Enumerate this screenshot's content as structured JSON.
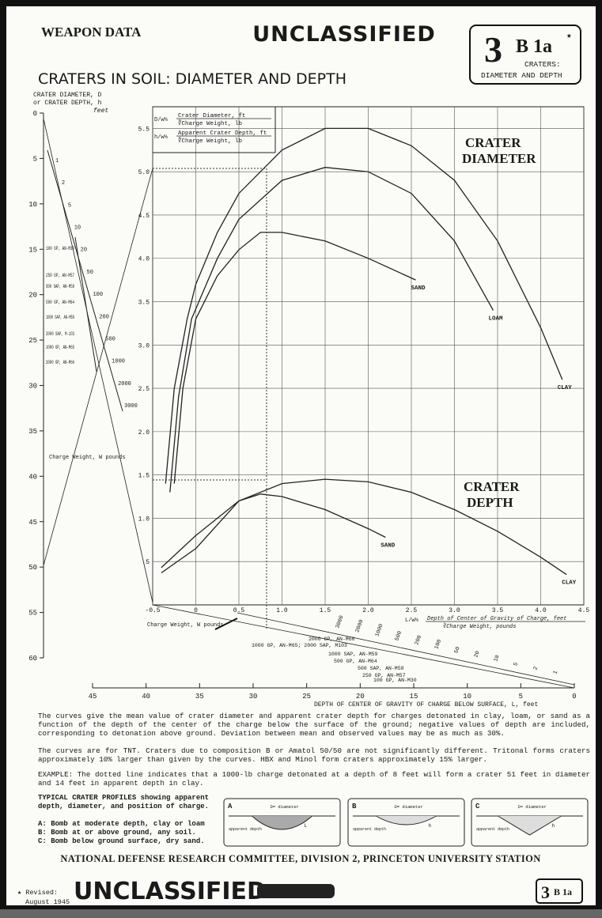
{
  "header": {
    "left": "WEAPON DATA",
    "stamp": "UNCLASSIFIED",
    "badge_number": "3",
    "badge_code": "B 1a",
    "badge_star": "★",
    "badge_caption_1": "CRATERS:",
    "badge_caption_2": "DIAMETER AND DEPTH",
    "title": "CRATERS IN SOIL: DIAMETER AND DEPTH"
  },
  "chart_data": {
    "type": "line",
    "formulas": [
      {
        "lhs": "D/w⅓",
        "num": "Crater Diameter, ft",
        "den": "∛Charge Weight, lb"
      },
      {
        "lhs": "h/w⅓",
        "num": "Apparent Crater Depth, ft",
        "den": "∛Charge Weight, lb"
      }
    ],
    "x_label": {
      "lhs": "L/w⅓",
      "num": "Depth of Center of Gravity of Charge, feet",
      "den": "∛Charge Weight, pounds"
    },
    "annotations": {
      "diameter_1": "CRATER",
      "diameter_2": "DIAMETER",
      "depth_1": "CRATER",
      "depth_2": "DEPTH",
      "charge": "Charge Weight, W pounds"
    },
    "xlim": [
      -0.5,
      4.5
    ],
    "xticks": [
      -0.5,
      0,
      0.5,
      {
        "value": 1,
        "label": "1.0"
      },
      1.5,
      {
        "value": 2,
        "label": "2.0"
      },
      2.5,
      {
        "value": 3,
        "label": "3.0"
      },
      3.5,
      {
        "value": 4,
        "label": "4.0"
      },
      4.5
    ],
    "ylim": [
      0,
      5.75
    ],
    "yticks": [
      {
        "value": 0.5,
        "label": ".5"
      },
      {
        "value": 1,
        "label": "1.0"
      },
      1.5,
      {
        "value": 2,
        "label": "2.0"
      },
      2.5,
      {
        "value": 3,
        "label": "3.0"
      },
      3.5,
      {
        "value": 4,
        "label": "4.0"
      },
      4.5,
      {
        "value": 5,
        "label": "5.0"
      },
      5.5
    ],
    "grid": true,
    "color": "#222222",
    "series": [
      {
        "name": "CLAY",
        "x": [
          -0.35,
          -0.25,
          -0.1,
          0,
          0.25,
          0.5,
          1.0,
          1.5,
          2.0,
          2.5,
          3.0,
          3.5,
          4.0,
          4.25
        ],
        "values": [
          1.4,
          2.5,
          3.3,
          3.7,
          4.3,
          4.75,
          5.25,
          5.5,
          5.5,
          5.3,
          4.9,
          4.2,
          3.2,
          2.6
        ]
      },
      {
        "name": "LOAM",
        "x": [
          -0.3,
          -0.2,
          -0.05,
          0.25,
          0.5,
          1.0,
          1.5,
          2.0,
          2.5,
          3.0,
          3.45
        ],
        "values": [
          1.3,
          2.4,
          3.3,
          4.0,
          4.45,
          4.9,
          5.05,
          5.0,
          4.75,
          4.2,
          3.4
        ]
      },
      {
        "name": "SAND",
        "x": [
          -0.25,
          -0.15,
          0,
          0.25,
          0.5,
          0.75,
          1.0,
          1.5,
          2.0,
          2.55
        ],
        "values": [
          1.4,
          2.5,
          3.3,
          3.8,
          4.1,
          4.3,
          4.3,
          4.2,
          4.0,
          3.75
        ]
      },
      {
        "name": "CLAY",
        "x": [
          -0.4,
          0,
          0.5,
          1.0,
          1.5,
          2.0,
          2.5,
          3.0,
          3.5,
          4.0,
          4.3
        ],
        "values": [
          0.37,
          0.65,
          1.2,
          1.4,
          1.45,
          1.42,
          1.3,
          1.1,
          0.85,
          0.55,
          0.35
        ]
      },
      {
        "name": "SAND",
        "x": [
          -0.4,
          0,
          0.5,
          0.75,
          1.0,
          1.5,
          2.0,
          2.2
        ],
        "values": [
          0.43,
          0.8,
          1.2,
          1.28,
          1.25,
          1.1,
          0.88,
          0.78
        ]
      }
    ]
  },
  "nomograph": {
    "left_title_1": "CRATER DIAMETER, D",
    "left_title_2": "or CRATER DEPTH, h",
    "left_unit": "feet",
    "left_lim": [
      0,
      60
    ],
    "left_ticks": [
      0,
      5,
      10,
      15,
      20,
      25,
      30,
      35,
      40,
      45,
      50,
      55,
      60
    ],
    "weights": [
      "1",
      "2",
      "5",
      "10",
      "20",
      "50",
      "100",
      "200",
      "500",
      "1000",
      "2000",
      "3000"
    ],
    "bombs": [
      "100 GP, AN-M30",
      "250 GP, AN-M57",
      "500 SAP, AN-M58",
      "500 GP, AN-M64",
      "1000 SAP, AN-M59",
      "2000 SAP, M-103",
      "1000 GP, AN-M65",
      "2000 GP, AN-M66"
    ],
    "bottom_bombs": [
      "2000 GP, AN-M66",
      "1000 GP, AN-M65; 2000 SAP, M103",
      "1000 SAP, AN-M59",
      "500 GP, AN-M64",
      "500 SAP, AN-M58",
      "250 GP, AN-M57",
      "100 GP, AN-M30"
    ],
    "bottom_weights": [
      "3000",
      "2000",
      "1000",
      "500",
      "200",
      "100",
      "50",
      "20",
      "10",
      "5",
      "2",
      "1"
    ],
    "bottom_lim": [
      45,
      0
    ],
    "bottom_ticks": [
      45,
      40,
      35,
      30,
      25,
      20,
      15,
      10,
      5,
      0
    ],
    "bottom_title": "DEPTH OF CENTER OF GRAVITY OF CHARGE BELOW SURFACE, L, feet"
  },
  "notes": [
    "The curves give the mean value of crater diameter and apparent crater depth for charges detonated in clay, loam, or sand as a function of the depth of the center of the charge below the surface of the ground; negative values of depth are included, corresponding to detonation above ground. Deviation between mean and observed values may be as much as 30%.",
    "The curves are for TNT. Craters due to composition B or Amatol 50/50 are not significantly different. Tritonal forms craters approximately 10% larger than given by the curves. HBX and Minol form craters approximately 15% larger.",
    "EXAMPLE: The dotted line indicates that a 1000-lb charge detonated at a depth of 8 feet will form a crater 51 feet in diameter and 14 feet in apparent depth in clay."
  ],
  "profiles": {
    "intro": "TYPICAL CRATER PROFILES showing apparent depth, diameter, and position of charge.",
    "items": [
      "A: Bomb at moderate depth, clay or loam",
      "B: Bomb at or above ground, any soil.",
      "C: Bomb below ground surface, dry sand."
    ],
    "boxes": [
      {
        "letter": "A",
        "diameter": "D= diameter",
        "depth": "apparent depth",
        "l": "L"
      },
      {
        "letter": "B",
        "diameter": "D= diameter",
        "depth": "apparent depth",
        "l": "h"
      },
      {
        "letter": "C",
        "diameter": "D= diameter",
        "depth": "apparent depth",
        "l": "h"
      }
    ]
  },
  "footer": {
    "committee": "NATIONAL DEFENSE RESEARCH COMMITTEE, DIVISION 2, PRINCETON UNIVERSITY STATION",
    "revised": "★ Revised:",
    "date": "August 1945"
  }
}
